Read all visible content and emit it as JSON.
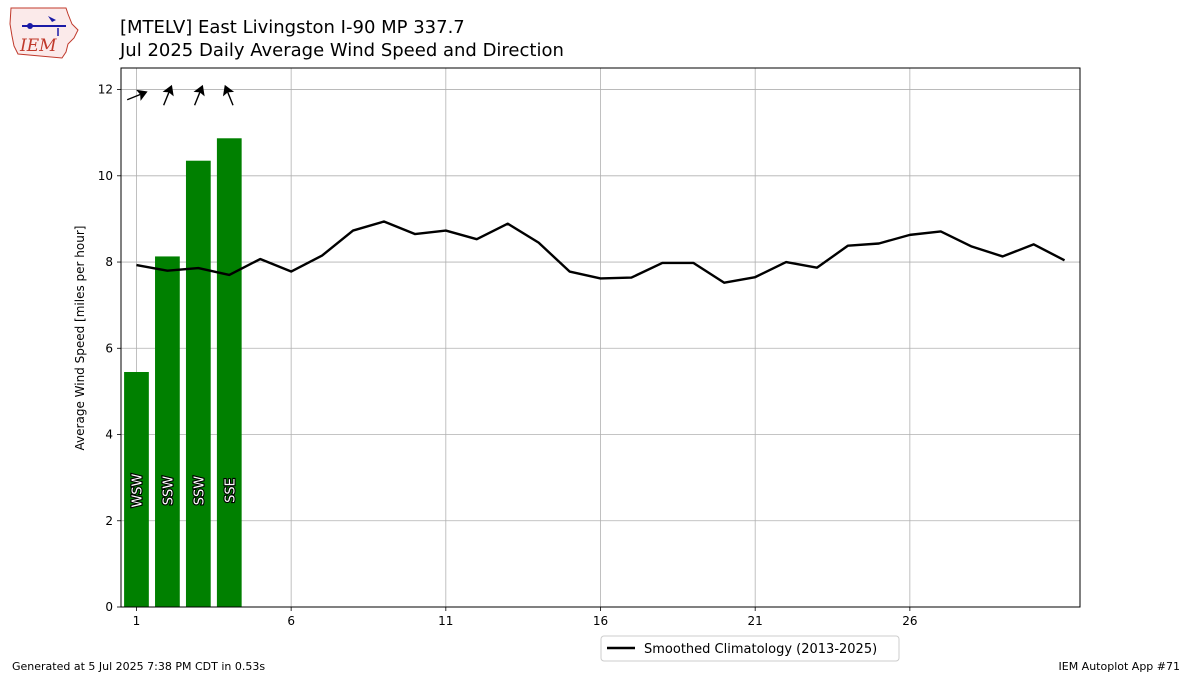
{
  "title": "[MTELV] East Livingston I-90 MP 337.7",
  "subtitle": "Jul 2025 Daily Average Wind Speed and Direction",
  "logo_text": "IEM",
  "footer_left": "Generated at 5 Jul 2025 7:38 PM CDT in 0.53s",
  "footer_right": "IEM Autoplot App #71",
  "colors": {
    "bar": "#008000",
    "line": "#000000",
    "grid": "#b0b0b0",
    "logo_red": "#c0392b",
    "logo_blue": "#1a1aa6"
  },
  "chart_data": {
    "type": "bar",
    "xlabel": "",
    "ylabel": "Average Wind Speed [miles per hour]",
    "xlim": [
      0.5,
      31.5
    ],
    "ylim": [
      0,
      12.5
    ],
    "xticks": [
      1,
      6,
      11,
      16,
      21,
      26
    ],
    "yticks": [
      0,
      2,
      4,
      6,
      8,
      10,
      12
    ],
    "grid": true,
    "legend_position": "bottom-center",
    "bars": {
      "days": [
        1,
        2,
        3,
        4
      ],
      "values": [
        5.45,
        8.13,
        10.35,
        10.87
      ],
      "direction_labels": [
        "WSW",
        "SSW",
        "SSW",
        "SSE"
      ],
      "direction_deg": [
        248,
        202,
        202,
        158
      ]
    },
    "series": [
      {
        "name": "Smoothed Climatology (2013-2025)",
        "x": [
          1,
          2,
          3,
          4,
          5,
          6,
          7,
          8,
          9,
          10,
          11,
          12,
          13,
          14,
          15,
          16,
          17,
          18,
          19,
          20,
          21,
          22,
          23,
          24,
          25,
          26,
          27,
          28,
          29,
          30,
          31
        ],
        "values": [
          7.93,
          7.8,
          7.86,
          7.7,
          8.07,
          7.78,
          8.15,
          8.73,
          8.94,
          8.65,
          8.73,
          8.53,
          8.89,
          8.45,
          7.78,
          7.62,
          7.64,
          7.98,
          7.98,
          7.52,
          7.65,
          8.0,
          7.87,
          8.38,
          8.43,
          8.63,
          8.71,
          8.36,
          8.13,
          8.41,
          8.04
        ]
      }
    ]
  }
}
